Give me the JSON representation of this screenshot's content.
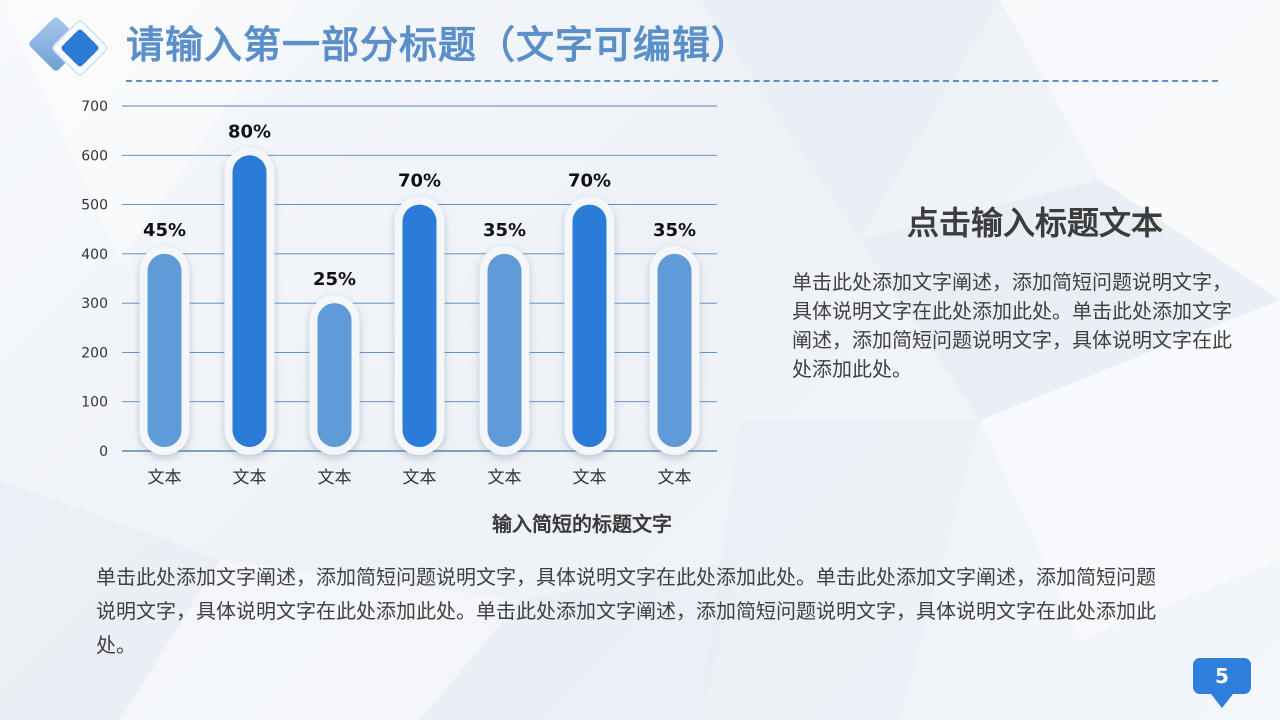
{
  "header": {
    "title": "请输入第一部分标题（文字可编辑）",
    "logo_icon": "double-diamond-icon",
    "accent_color": "#5b8fc9"
  },
  "chart_data": {
    "type": "bar",
    "categories": [
      "文本",
      "文本",
      "文本",
      "文本",
      "文本",
      "文本",
      "文本"
    ],
    "values": [
      400,
      600,
      300,
      500,
      400,
      500,
      400
    ],
    "data_labels": [
      "45%",
      "80%",
      "25%",
      "70%",
      "35%",
      "70%",
      "35%"
    ],
    "ylim": [
      0,
      700
    ],
    "yticks": [
      0,
      100,
      200,
      300,
      400,
      500,
      600,
      700
    ],
    "grid": true,
    "legend": "none",
    "title": "",
    "xlabel": "",
    "ylabel": "",
    "bar_colors": [
      "#5f9bd6",
      "#2b7bd8",
      "#5f9bd6",
      "#2b7bd8",
      "#5f9bd6",
      "#2b7bd8",
      "#5f9bd6"
    ]
  },
  "chart_caption": "输入简短的标题文字",
  "side": {
    "title": "点击输入标题文本",
    "body": "单击此处添加文字阐述，添加简短问题说明文字，具体说明文字在此处添加此处。单击此处添加文字阐述，添加简短问题说明文字，具体说明文字在此处添加此处。"
  },
  "bottom_text": "单击此处添加文字阐述，添加简短问题说明文字，具体说明文字在此处添加此处。单击此处添加文字阐述，添加简短问题说明文字，具体说明文字在此处添加此处。单击此处添加文字阐述，添加简短问题说明文字，具体说明文字在此处添加此处。",
  "page_number": "5"
}
